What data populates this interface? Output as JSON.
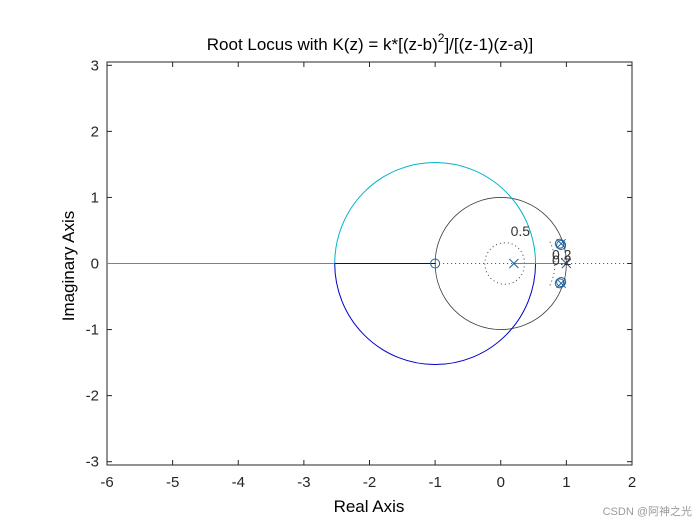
{
  "chart_data": {
    "type": "line",
    "title_main": "Root Locus with K(z) = k*[(z-b)",
    "title_sup": "2",
    "title_rest": "]/[(z-1)(z-a)]",
    "xlabel": "Real Axis",
    "ylabel": "Imaginary Axis",
    "xlim": [
      -6,
      2
    ],
    "ylim": [
      -3.05,
      3.05
    ],
    "xticks": [
      "-6",
      "-5",
      "-4",
      "-3",
      "-2",
      "-1",
      "0",
      "1",
      "2"
    ],
    "yticks": [
      "3",
      "2",
      "1",
      "0",
      "-1",
      "-2",
      "-3"
    ],
    "poles": [
      [
        0.2,
        0
      ],
      [
        1,
        0
      ],
      [
        0.92,
        0.3
      ],
      [
        0.92,
        -0.3
      ]
    ],
    "zeros": [
      [
        -1,
        0
      ],
      [
        0.9,
        0.3
      ],
      [
        0.9,
        -0.3
      ],
      [
        0.92,
        0.28
      ],
      [
        0.92,
        -0.28
      ]
    ],
    "locus_circle": {
      "center": [
        -1,
        0
      ],
      "radius": 1.53
    },
    "unit_circle_radius": 1.0,
    "damping_labels": [
      "0.5",
      "0.2",
      "0.2"
    ],
    "colors": {
      "locus_upper": "#00b4c8",
      "locus_lower": "#0000c8",
      "grid": "#404040",
      "zero_marker": "#1f5fa0"
    },
    "watermark": "CSDN @阿神之光"
  }
}
